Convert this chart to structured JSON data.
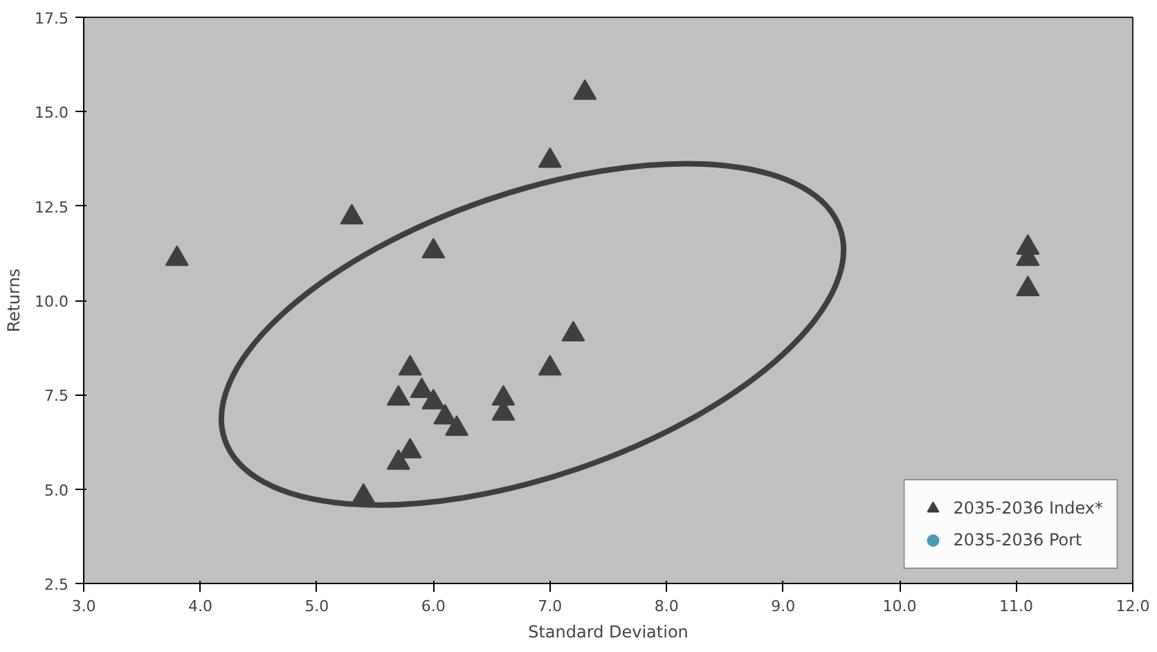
{
  "chart_data": {
    "type": "scatter",
    "xlabel": "Standard Deviation",
    "ylabel": "Returns",
    "xlim": [
      3,
      12
    ],
    "ylim": [
      2.5,
      17.5
    ],
    "xticks": [
      {
        "value": 3,
        "label": "3.0"
      },
      {
        "value": 4,
        "label": "4.0"
      },
      {
        "value": 5,
        "label": "5.0"
      },
      {
        "value": 6,
        "label": "6.0"
      },
      {
        "value": 7,
        "label": "7.0"
      },
      {
        "value": 8,
        "label": "8.0"
      },
      {
        "value": 9,
        "label": "9.0"
      },
      {
        "value": 10,
        "label": "10.0"
      },
      {
        "value": 11,
        "label": "11.0"
      },
      {
        "value": 12,
        "label": "12.0"
      }
    ],
    "yticks": [
      2.5,
      {
        "value": 5,
        "label": "5.0"
      },
      7.5,
      {
        "value": 10,
        "label": "10.0"
      },
      12.5,
      {
        "value": 15,
        "label": "15.0"
      },
      17.5
    ],
    "grid": false,
    "legend": "bottom right",
    "series": [
      {
        "name": "2035-2036 Index*",
        "color": "#3f3f3f",
        "marker": "triangle",
        "x": [
          3.8,
          5.3,
          6.0,
          7.0,
          7.3,
          11.1,
          11.1,
          11.1,
          7.2,
          7.0,
          5.8,
          5.7,
          5.9,
          6.0,
          6.1,
          6.2,
          6.6,
          6.6,
          5.8,
          5.7,
          5.4
        ],
        "values": [
          11.1,
          12.2,
          11.3,
          13.7,
          15.5,
          11.4,
          11.1,
          10.3,
          9.1,
          8.2,
          8.2,
          7.4,
          7.6,
          7.3,
          6.9,
          6.6,
          7.4,
          7.0,
          6.0,
          5.7,
          4.8
        ]
      },
      {
        "name": "2035-2036 Port",
        "color": "#4a9bb8",
        "marker": "circle"
      }
    ]
  }
}
